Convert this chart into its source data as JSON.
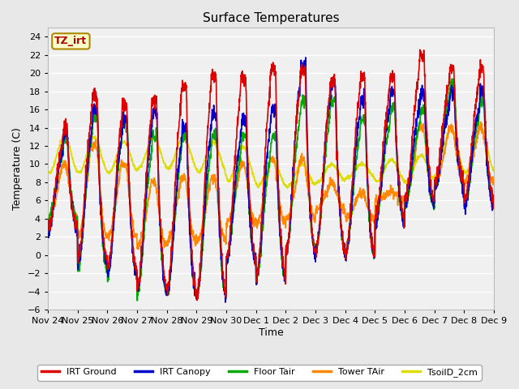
{
  "title": "Surface Temperatures",
  "xlabel": "Time",
  "ylabel": "Temperature (C)",
  "ylim": [
    -6,
    25
  ],
  "yticks": [
    -6,
    -4,
    -2,
    0,
    2,
    4,
    6,
    8,
    10,
    12,
    14,
    16,
    18,
    20,
    22,
    24
  ],
  "xtick_labels": [
    "Nov 24",
    "Nov 25",
    "Nov 26",
    "Nov 27",
    "Nov 28",
    "Nov 29",
    "Nov 30",
    "Dec 1",
    "Dec 2",
    "Dec 3",
    "Dec 4",
    "Dec 5",
    "Dec 6",
    "Dec 7",
    "Dec 8",
    "Dec 9"
  ],
  "bg_color": "#e8e8e8",
  "plot_bg_color": "#f0f0f0",
  "grid_color": "white",
  "legend_items": [
    {
      "label": "IRT Ground",
      "color": "#dd0000"
    },
    {
      "label": "IRT Canopy",
      "color": "#0000cc"
    },
    {
      "label": "Floor Tair",
      "color": "#00aa00"
    },
    {
      "label": "Tower TAir",
      "color": "#ff8800"
    },
    {
      "label": "TsoilD_2cm",
      "color": "#dddd00"
    }
  ],
  "annotation_text": "TZ_irt",
  "annotation_color": "#aa0000",
  "annotation_bg": "#ffffcc",
  "annotation_border": "#aa8800",
  "line_width": 1.2
}
